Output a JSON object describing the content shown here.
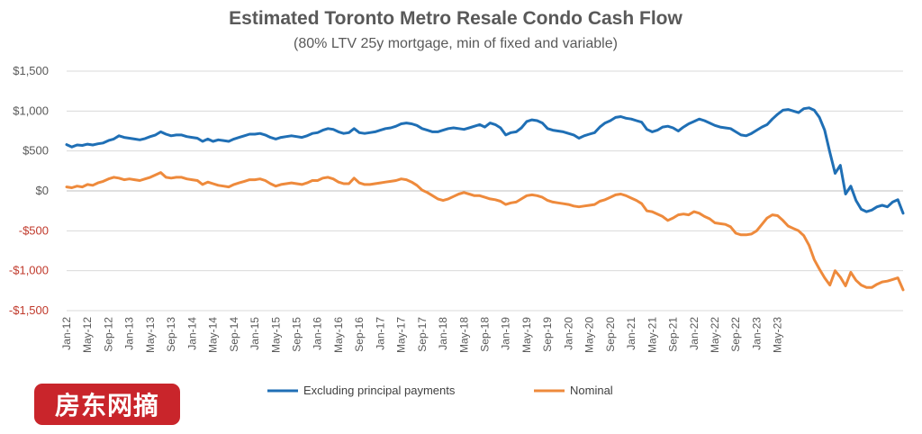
{
  "colors": {
    "excluding": "#1f6fb5",
    "nominal": "#ee8a3c",
    "negative_tick": "#c0392b",
    "positive_tick": "#595959",
    "watermark_bg": "#c9252b"
  },
  "watermark": {
    "text": "房东网摘"
  },
  "chart_data": {
    "type": "line",
    "title": "Estimated Toronto Metro Resale Condo Cash Flow",
    "subtitle": "(80% LTV 25y mortgage, min of fixed and variable)",
    "ylim": [
      -1500,
      1500
    ],
    "yticks": [
      1500,
      1000,
      500,
      0,
      -500,
      -1000,
      -1500
    ],
    "ytick_labels": [
      "$1,500",
      "$1,000",
      "$500",
      "$0",
      "-$500",
      "-$1,000",
      "-$1,500"
    ],
    "x_start": "Jan-12",
    "x_end": "May-23",
    "xtick_labels": [
      "Jan-12",
      "May-12",
      "Sep-12",
      "Jan-13",
      "May-13",
      "Sep-13",
      "Jan-14",
      "May-14",
      "Sep-14",
      "Jan-15",
      "May-15",
      "Sep-15",
      "Jan-16",
      "May-16",
      "Sep-16",
      "Jan-17",
      "May-17",
      "Sep-17",
      "Jan-18",
      "May-18",
      "Sep-18",
      "Jan-19",
      "May-19",
      "Sep-19",
      "Jan-20",
      "May-20",
      "Sep-20",
      "Jan-21",
      "May-21",
      "Sep-21",
      "Jan-22",
      "May-22",
      "Sep-22",
      "Jan-23",
      "May-23"
    ],
    "grid": true,
    "legend_position": "bottom",
    "series": [
      {
        "name": "Excluding principal payments",
        "values": [
          580,
          550,
          575,
          570,
          585,
          575,
          590,
          600,
          630,
          650,
          690,
          670,
          660,
          650,
          640,
          655,
          680,
          700,
          740,
          710,
          690,
          700,
          700,
          680,
          670,
          660,
          620,
          650,
          620,
          640,
          630,
          620,
          650,
          670,
          690,
          710,
          710,
          720,
          700,
          670,
          650,
          670,
          680,
          690,
          680,
          670,
          690,
          720,
          730,
          760,
          780,
          770,
          740,
          720,
          730,
          780,
          730,
          720,
          730,
          740,
          760,
          780,
          790,
          810,
          840,
          850,
          840,
          820,
          780,
          760,
          740,
          740,
          760,
          780,
          790,
          780,
          770,
          790,
          810,
          830,
          800,
          850,
          830,
          790,
          700,
          730,
          740,
          790,
          870,
          890,
          880,
          850,
          780,
          760,
          750,
          740,
          720,
          700,
          660,
          690,
          710,
          730,
          800,
          850,
          880,
          920,
          930,
          910,
          900,
          880,
          860,
          770,
          740,
          760,
          800,
          810,
          790,
          750,
          800,
          840,
          870,
          900,
          880,
          850,
          820,
          800,
          790,
          780,
          740,
          700,
          690,
          720,
          760,
          800,
          830,
          900,
          960,
          1010,
          1020,
          1000,
          980,
          1030,
          1040,
          1010,
          920,
          760,
          480,
          220,
          320,
          -40,
          60,
          -120,
          -230,
          -260,
          -240,
          -200,
          -180,
          -200,
          -140,
          -110,
          -280
        ]
      },
      {
        "name": "Nominal",
        "values": [
          50,
          40,
          60,
          50,
          80,
          70,
          100,
          120,
          150,
          170,
          160,
          140,
          150,
          140,
          130,
          150,
          170,
          200,
          230,
          170,
          160,
          170,
          170,
          150,
          140,
          130,
          80,
          110,
          90,
          70,
          60,
          50,
          80,
          100,
          120,
          140,
          140,
          150,
          130,
          90,
          60,
          80,
          90,
          100,
          90,
          80,
          100,
          130,
          130,
          160,
          170,
          150,
          110,
          90,
          90,
          160,
          100,
          80,
          80,
          90,
          100,
          110,
          120,
          130,
          150,
          140,
          110,
          70,
          10,
          -20,
          -60,
          -100,
          -120,
          -100,
          -70,
          -40,
          -20,
          -40,
          -60,
          -60,
          -80,
          -100,
          -110,
          -130,
          -170,
          -150,
          -140,
          -100,
          -60,
          -50,
          -60,
          -80,
          -120,
          -140,
          -150,
          -160,
          -170,
          -190,
          -200,
          -190,
          -180,
          -170,
          -130,
          -110,
          -80,
          -50,
          -40,
          -60,
          -90,
          -120,
          -160,
          -250,
          -260,
          -290,
          -320,
          -370,
          -340,
          -300,
          -290,
          -300,
          -260,
          -280,
          -320,
          -350,
          -400,
          -410,
          -420,
          -450,
          -530,
          -550,
          -550,
          -540,
          -500,
          -420,
          -340,
          -300,
          -310,
          -370,
          -440,
          -470,
          -500,
          -560,
          -680,
          -860,
          -980,
          -1090,
          -1180,
          -1000,
          -1080,
          -1190,
          -1020,
          -1120,
          -1180,
          -1210,
          -1210,
          -1170,
          -1140,
          -1130,
          -1110,
          -1090,
          -1240
        ]
      }
    ]
  }
}
